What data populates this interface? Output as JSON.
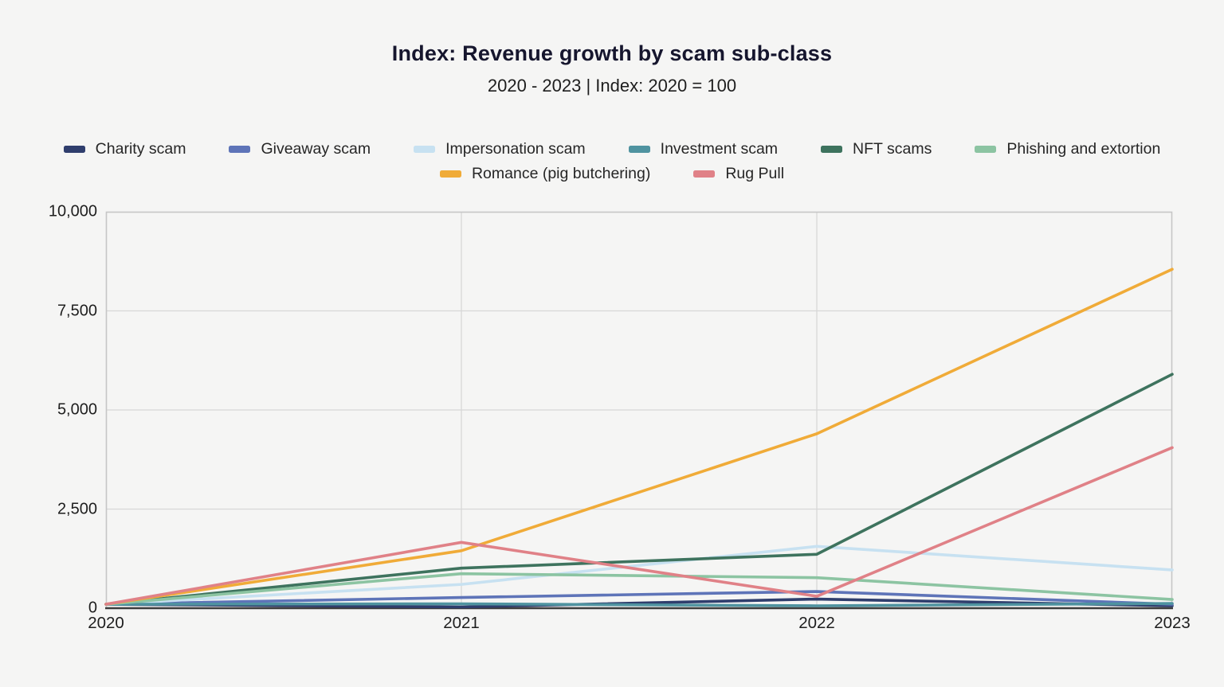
{
  "page": {
    "title": "Index: Revenue growth by scam sub-class",
    "subtitle": "2020 - 2023 | Index: 2020 = 100"
  },
  "chart_data": {
    "type": "line",
    "title": "Index: Revenue growth by scam sub-class",
    "subtitle": "2020 - 2023 | Index: 2020 = 100",
    "xlabel": "",
    "ylabel": "",
    "x_tick_labels": [
      "2020",
      "2021",
      "2022",
      "2023"
    ],
    "y_ticks": [
      0,
      2500,
      5000,
      7500,
      10000
    ],
    "y_tick_labels": [
      "0",
      "2,500",
      "5,000",
      "7,500",
      "10,000"
    ],
    "ylim": [
      0,
      10000
    ],
    "grid": true,
    "legend_position": "top",
    "series": [
      {
        "name": "Charity scam",
        "color": "#2f3e6d",
        "values": [
          100,
          30,
          230,
          60
        ]
      },
      {
        "name": "Giveaway scam",
        "color": "#5e74b8",
        "values": [
          100,
          270,
          420,
          100
        ]
      },
      {
        "name": "Impersonation scam",
        "color": "#c7e1f1",
        "values": [
          100,
          600,
          1560,
          965
        ]
      },
      {
        "name": "Investment scam",
        "color": "#4f93a0",
        "values": [
          100,
          110,
          60,
          120
        ]
      },
      {
        "name": "NFT scams",
        "color": "#3e735e",
        "values": [
          100,
          1010,
          1360,
          5900
        ]
      },
      {
        "name": "Phishing and extortion",
        "color": "#8cc4a2",
        "values": [
          100,
          870,
          770,
          220
        ]
      },
      {
        "name": "Romance (pig butchering)",
        "color": "#f0ab38",
        "values": [
          100,
          1450,
          4400,
          8550
        ]
      },
      {
        "name": "Rug Pull",
        "color": "#e08187",
        "values": [
          100,
          1660,
          300,
          4050
        ]
      }
    ],
    "style": {
      "grid_color": "#d7d7d7",
      "border_color": "#c6c6c6",
      "axis_color": "#3d3d3d"
    }
  }
}
